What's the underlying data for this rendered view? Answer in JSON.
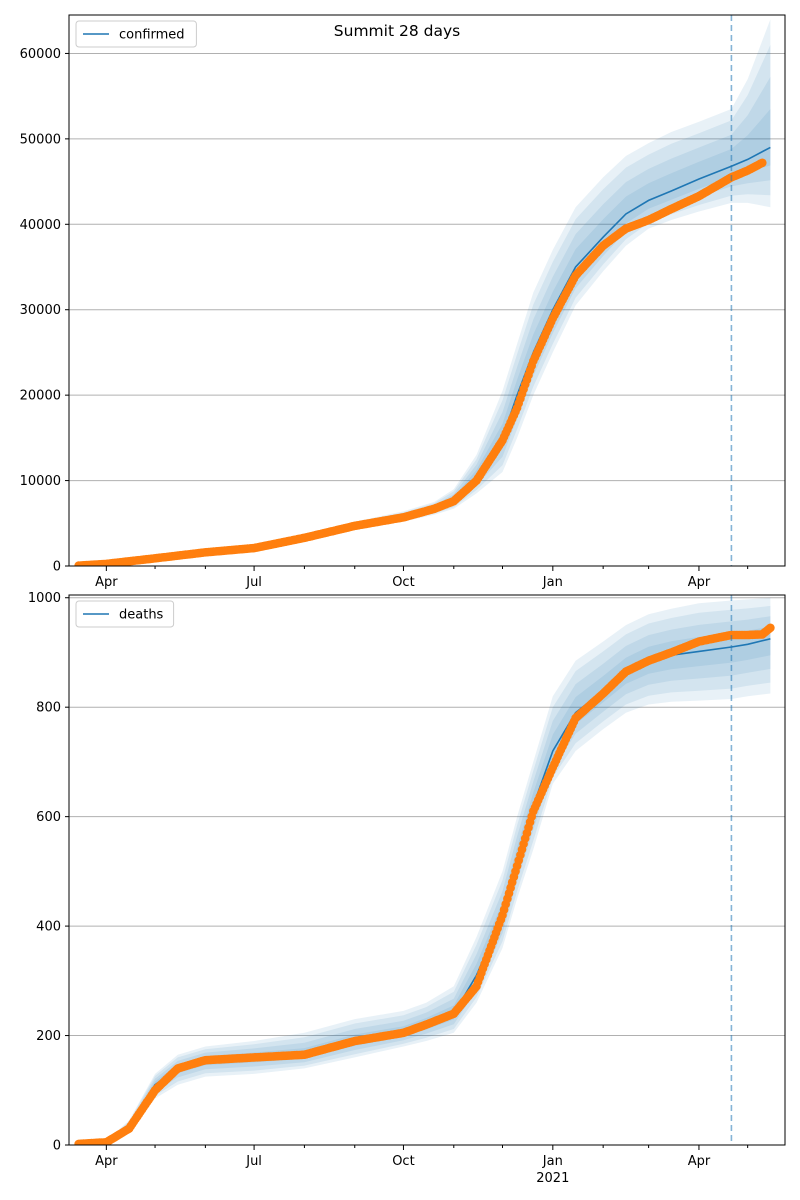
{
  "chart_data": [
    {
      "type": "line",
      "title": "Summit 28 days",
      "legend": "top-left",
      "grid": "horizontal",
      "ylim": [
        0,
        64500
      ],
      "yticks": [
        0,
        10000,
        20000,
        30000,
        40000,
        50000,
        60000
      ],
      "x_ticks": [
        "Apr",
        "Jul",
        "Oct",
        "Jan",
        "Apr"
      ],
      "x_tick_sublabel": "2021",
      "vline_date": "2021-04-21",
      "colors": {
        "model": "#1f77b4",
        "observed": "#ff7f0e",
        "band": "#1f77b4"
      },
      "series": [
        {
          "name": "confirmed",
          "kind": "model",
          "x": [
            "2020-03-15",
            "2020-04-01",
            "2020-05-01",
            "2020-06-01",
            "2020-07-01",
            "2020-08-01",
            "2020-09-01",
            "2020-10-01",
            "2020-10-20",
            "2020-11-01",
            "2020-11-15",
            "2020-12-01",
            "2020-12-10",
            "2020-12-20",
            "2021-01-01",
            "2021-01-15",
            "2021-02-01",
            "2021-02-15",
            "2021-03-01",
            "2021-03-15",
            "2021-04-01",
            "2021-04-21",
            "2021-05-01",
            "2021-05-15"
          ],
          "values": [
            0,
            150,
            700,
            1500,
            2200,
            3400,
            4700,
            5800,
            6700,
            7700,
            10500,
            15000,
            20000,
            25000,
            30000,
            35000,
            38500,
            41200,
            42800,
            43900,
            45300,
            46800,
            47600,
            49000
          ],
          "band_upper": [
            0,
            200,
            850,
            1700,
            2500,
            3800,
            5200,
            6400,
            7500,
            9000,
            13000,
            20500,
            26000,
            32000,
            37000,
            42000,
            45500,
            48000,
            49500,
            50800,
            52000,
            53500,
            57000,
            64000
          ],
          "band_lower": [
            0,
            100,
            550,
            1300,
            1900,
            3000,
            4200,
            5200,
            6000,
            6700,
            8500,
            11000,
            15000,
            20000,
            25000,
            30500,
            34500,
            37500,
            39500,
            40500,
            41500,
            42500,
            42500,
            42000
          ]
        },
        {
          "name": "observed",
          "kind": "observed",
          "x": [
            "2020-03-15",
            "2020-04-01",
            "2020-05-01",
            "2020-06-01",
            "2020-07-01",
            "2020-08-01",
            "2020-09-01",
            "2020-10-01",
            "2020-10-20",
            "2020-11-01",
            "2020-11-15",
            "2020-12-01",
            "2020-12-10",
            "2020-12-20",
            "2021-01-01",
            "2021-01-15",
            "2021-02-01",
            "2021-02-15",
            "2021-03-01",
            "2021-03-15",
            "2021-04-01",
            "2021-04-21",
            "2021-05-01",
            "2021-05-10"
          ],
          "values": [
            50,
            250,
            900,
            1600,
            2100,
            3300,
            4700,
            5700,
            6700,
            7600,
            10000,
            14700,
            18500,
            24000,
            29000,
            34000,
            37500,
            39500,
            40500,
            41800,
            43300,
            45500,
            46300,
            47200
          ]
        }
      ]
    },
    {
      "type": "line",
      "title": "",
      "legend": "top-left",
      "grid": "horizontal",
      "ylim": [
        0,
        1005
      ],
      "yticks": [
        0,
        200,
        400,
        600,
        800,
        1000
      ],
      "x_ticks": [
        "Apr",
        "Jul",
        "Oct",
        "Jan",
        "Apr"
      ],
      "x_tick_sublabel": "2021",
      "vline_date": "2021-04-21",
      "colors": {
        "model": "#1f77b4",
        "observed": "#ff7f0e",
        "band": "#1f77b4"
      },
      "series": [
        {
          "name": "deaths",
          "kind": "model",
          "x": [
            "2020-03-15",
            "2020-04-01",
            "2020-04-15",
            "2020-05-01",
            "2020-05-15",
            "2020-06-01",
            "2020-07-01",
            "2020-08-01",
            "2020-09-01",
            "2020-10-01",
            "2020-10-15",
            "2020-11-01",
            "2020-11-15",
            "2020-12-01",
            "2020-12-10",
            "2020-12-20",
            "2021-01-01",
            "2021-01-15",
            "2021-02-01",
            "2021-02-15",
            "2021-03-01",
            "2021-03-15",
            "2021-04-01",
            "2021-04-21",
            "2021-05-01",
            "2021-05-15"
          ],
          "values": [
            0,
            5,
            35,
            110,
            140,
            155,
            160,
            165,
            190,
            205,
            220,
            240,
            310,
            420,
            520,
            620,
            720,
            790,
            830,
            865,
            885,
            895,
            902,
            910,
            915,
            925
          ],
          "band_upper": [
            0,
            8,
            45,
            130,
            165,
            180,
            190,
            205,
            230,
            245,
            260,
            290,
            380,
            500,
            600,
            700,
            820,
            885,
            920,
            950,
            970,
            980,
            990,
            995,
            997,
            1000
          ],
          "band_lower": [
            0,
            2,
            25,
            85,
            110,
            125,
            130,
            140,
            160,
            180,
            190,
            205,
            260,
            360,
            450,
            540,
            660,
            720,
            760,
            790,
            805,
            810,
            812,
            815,
            820,
            825
          ]
        },
        {
          "name": "observed",
          "kind": "observed",
          "x": [
            "2020-03-15",
            "2020-04-01",
            "2020-04-15",
            "2020-05-01",
            "2020-05-15",
            "2020-06-01",
            "2020-07-01",
            "2020-08-01",
            "2020-09-01",
            "2020-10-01",
            "2020-10-15",
            "2020-11-01",
            "2020-11-15",
            "2020-12-01",
            "2020-12-10",
            "2020-12-20",
            "2021-01-01",
            "2021-01-15",
            "2021-02-01",
            "2021-02-15",
            "2021-03-01",
            "2021-03-15",
            "2021-04-01",
            "2021-04-21",
            "2021-05-01",
            "2021-05-10",
            "2021-05-15"
          ],
          "values": [
            2,
            5,
            30,
            100,
            140,
            155,
            160,
            165,
            190,
            205,
            220,
            240,
            290,
            420,
            510,
            610,
            690,
            780,
            825,
            865,
            885,
            900,
            920,
            932,
            932,
            933,
            945
          ]
        }
      ]
    }
  ]
}
